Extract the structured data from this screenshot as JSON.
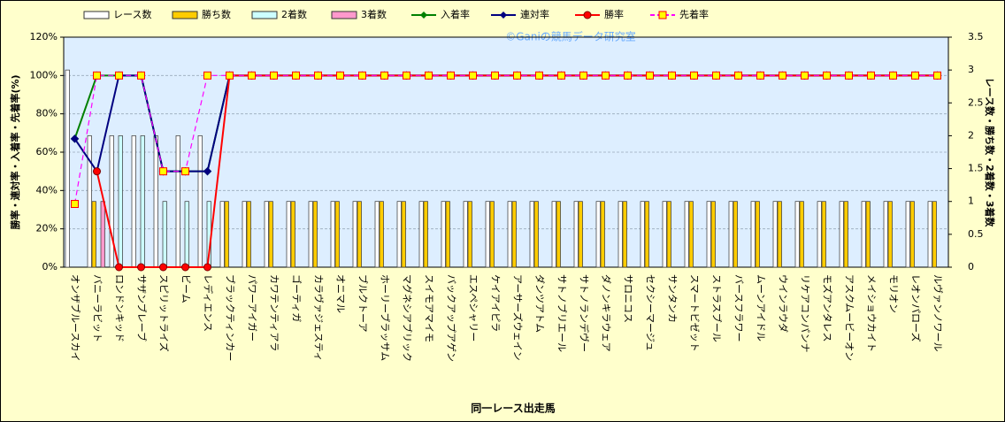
{
  "chart_data": {
    "type": "combo",
    "title": "©Ganiの競馬データ研究室",
    "x_label": "同一レース出走馬",
    "y_label": "勝率・連対率・入着率・先着率(%)",
    "y2_label": "レース数・勝ち数・2着数・3着数",
    "categories": [
      "オンザブルースカイ",
      "バニーラビット",
      "ロンドンキッド",
      "サザンブレーブ",
      "スピリットライズ",
      "ビーム",
      "レディエンス",
      "ブラックティンカー",
      "パワーアイガー",
      "カワテンティアラ",
      "ゴーティガ",
      "カラヴァジェスティ",
      "オニマル",
      "ブルクトーア",
      "ホーリーブラッサム",
      "マグネシアブリック",
      "スイモアマイモ",
      "バックアップアゲン",
      "エスペシャリー",
      "ケイアイピラ",
      "アーサーズウェイン",
      "ダンツアトム",
      "サトノブリエール",
      "サトノランデヴー",
      "ダノンキラウェア",
      "サロニコス",
      "セクシーマージュ",
      "サンタンカ",
      "スマートビゼット",
      "ストラスブール",
      "バースフラワー",
      "ムーンアイドル",
      "ウインラウダ",
      "リケアコンパンナ",
      "モズアンタレス",
      "アスクムービーオン",
      "メイショウカイト",
      "モリオン",
      "レオンパローズ",
      "ルヴァンノワール"
    ],
    "ylim": [
      0,
      120
    ],
    "yticks": [
      {
        "value": 0,
        "label": "0%"
      },
      {
        "value": 20,
        "label": "20%"
      },
      {
        "value": 40,
        "label": "40%"
      },
      {
        "value": 60,
        "label": "60%"
      },
      {
        "value": 80,
        "label": "80%"
      },
      {
        "value": 100,
        "label": "100%"
      },
      {
        "value": 120,
        "label": "120%"
      }
    ],
    "y2lim": [
      0,
      3.5
    ],
    "y2ticks": [
      0,
      0.5,
      1,
      1.5,
      2,
      2.5,
      3,
      3.5
    ],
    "grid": true,
    "series": [
      {
        "name": "レース数",
        "type": "bar",
        "axis": "y2",
        "color": "#ffffff",
        "values": [
          3,
          2,
          2,
          2,
          2,
          2,
          2,
          1,
          1,
          1,
          1,
          1,
          1,
          1,
          1,
          1,
          1,
          1,
          1,
          1,
          1,
          1,
          1,
          1,
          1,
          1,
          1,
          1,
          1,
          1,
          1,
          1,
          1,
          1,
          1,
          1,
          1,
          1,
          1,
          1
        ]
      },
      {
        "name": "勝ち数",
        "type": "bar",
        "axis": "y2",
        "color": "#ffcc00",
        "values": [
          0,
          1,
          0,
          0,
          0,
          0,
          0,
          1,
          1,
          1,
          1,
          1,
          1,
          1,
          1,
          1,
          1,
          1,
          1,
          1,
          1,
          1,
          1,
          1,
          1,
          1,
          1,
          1,
          1,
          1,
          1,
          1,
          1,
          1,
          1,
          1,
          1,
          1,
          1,
          1
        ]
      },
      {
        "name": "2着数",
        "type": "bar",
        "axis": "y2",
        "color": "#ccffff",
        "values": [
          0,
          0,
          2,
          2,
          1,
          1,
          1,
          0,
          0,
          0,
          0,
          0,
          0,
          0,
          0,
          0,
          0,
          0,
          0,
          0,
          0,
          0,
          0,
          0,
          0,
          0,
          0,
          0,
          0,
          0,
          0,
          0,
          0,
          0,
          0,
          0,
          0,
          0,
          0,
          0
        ]
      },
      {
        "name": "3着数",
        "type": "bar",
        "axis": "y2",
        "color": "#ff99cc",
        "values": [
          0,
          1,
          0,
          0,
          0,
          0,
          0,
          0,
          0,
          0,
          0,
          0,
          0,
          0,
          0,
          0,
          0,
          0,
          0,
          0,
          0,
          0,
          0,
          0,
          0,
          0,
          0,
          0,
          0,
          0,
          0,
          0,
          0,
          0,
          0,
          0,
          0,
          0,
          0,
          0
        ]
      },
      {
        "name": "入着率",
        "type": "line",
        "color": "#008000",
        "marker": "diamond",
        "values": [
          67,
          100,
          100,
          100,
          50,
          50,
          50,
          100,
          100,
          100,
          100,
          100,
          100,
          100,
          100,
          100,
          100,
          100,
          100,
          100,
          100,
          100,
          100,
          100,
          100,
          100,
          100,
          100,
          100,
          100,
          100,
          100,
          100,
          100,
          100,
          100,
          100,
          100,
          100,
          100
        ]
      },
      {
        "name": "連対率",
        "type": "line",
        "color": "#000080",
        "marker": "diamond",
        "values": [
          67,
          50,
          100,
          100,
          50,
          50,
          50,
          100,
          100,
          100,
          100,
          100,
          100,
          100,
          100,
          100,
          100,
          100,
          100,
          100,
          100,
          100,
          100,
          100,
          100,
          100,
          100,
          100,
          100,
          100,
          100,
          100,
          100,
          100,
          100,
          100,
          100,
          100,
          100,
          100
        ]
      },
      {
        "name": "勝率",
        "type": "line",
        "color": "#ff0000",
        "marker": "circle",
        "values": [
          null,
          50,
          0,
          0,
          0,
          0,
          0,
          100,
          100,
          100,
          100,
          100,
          100,
          100,
          100,
          100,
          100,
          100,
          100,
          100,
          100,
          100,
          100,
          100,
          100,
          100,
          100,
          100,
          100,
          100,
          100,
          100,
          100,
          100,
          100,
          100,
          100,
          100,
          100,
          100
        ]
      },
      {
        "name": "先着率",
        "type": "line",
        "color": "#ff00ff",
        "marker": "square",
        "dashed": true,
        "values": [
          33,
          100,
          100,
          100,
          50,
          50,
          100,
          100,
          100,
          100,
          100,
          100,
          100,
          100,
          100,
          100,
          100,
          100,
          100,
          100,
          100,
          100,
          100,
          100,
          100,
          100,
          100,
          100,
          100,
          100,
          100,
          100,
          100,
          100,
          100,
          100,
          100,
          100,
          100,
          100
        ]
      }
    ]
  }
}
